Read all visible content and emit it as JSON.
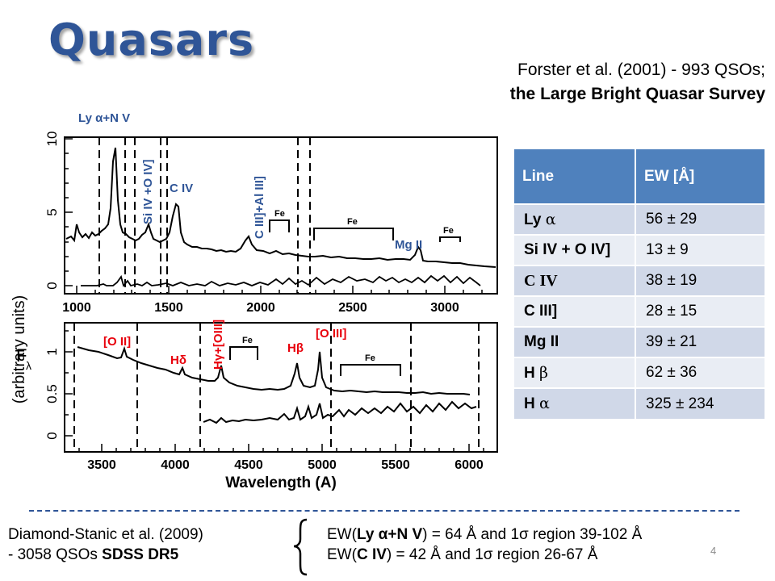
{
  "slide": {
    "title": "Quasars",
    "page_number": "4"
  },
  "citation": {
    "line1": "Forster et al. (2001) - 993 QSOs;",
    "line2": "the Large Bright Quasar Survey"
  },
  "figure": {
    "ylabel_f": "F",
    "ylabel_sub": "λ",
    "ylabel_units": "(arbitrary units)",
    "xlabel": "Wavelength (A)",
    "top_panel": {
      "y_ticks": [
        "0",
        "5",
        "10"
      ],
      "x_ticks": [
        "1000",
        "1500",
        "2000",
        "2500",
        "3000"
      ]
    },
    "bottom_panel": {
      "y_ticks": [
        "0",
        "0.5",
        "1"
      ],
      "x_ticks": [
        "3500",
        "4000",
        "4500",
        "5000",
        "5500",
        "6000"
      ]
    },
    "labels": {
      "ly_alpha": "Ly α+N V",
      "si_iv": "Si IV +O IV]",
      "c_iv": "C IV",
      "c_iii": "C III]+Al III]",
      "mg_ii": "Mg II",
      "fe": "Fe",
      "o_ii": "[O II]",
      "h_delta": "Hδ",
      "h_gamma": "Hγ+[OIII]",
      "h_beta": "Hβ",
      "o_iii": "[O III]"
    },
    "colors": {
      "label_blue": "#2f5597",
      "label_red": "#e8000b"
    }
  },
  "table": {
    "headers": {
      "line": "Line",
      "ew": "EW [Å]"
    },
    "rows": [
      {
        "name": "Ly",
        "greek": "α",
        "ew": "56 ± 29"
      },
      {
        "name": "Si IV + O IV]",
        "greek": "",
        "ew": "13 ± 9"
      },
      {
        "name": "C IV",
        "greek": "",
        "ew": "38 ± 19"
      },
      {
        "name": "C III]",
        "greek": "",
        "ew": "28 ± 15"
      },
      {
        "name": "Mg II",
        "greek": "",
        "ew": "39 ± 21"
      },
      {
        "name": "H",
        "greek": "β",
        "ew": "62 ± 36"
      },
      {
        "name": "H",
        "greek": "α",
        "ew": "325 ± 234"
      }
    ],
    "colors": {
      "header": "#4f81bd",
      "row_dark": "#d0d8e8",
      "row_light": "#e9edf4"
    }
  },
  "footnote": {
    "left_line1": "Diamond-Stanic et al. (2009)",
    "left_line2_prefix": "- 3058 QSOs ",
    "left_line2_bold": "SDSS DR5",
    "right_line1_prefix": "EW(",
    "right_line1_bold": "Ly α+N V",
    "right_line1_suffix": ") = 64 Å and 1σ region 39-102 Å",
    "right_line2_prefix": "EW(",
    "right_line2_bold": "C IV",
    "right_line2_suffix": ") = 42 Å and 1σ region 26-67 Å"
  }
}
